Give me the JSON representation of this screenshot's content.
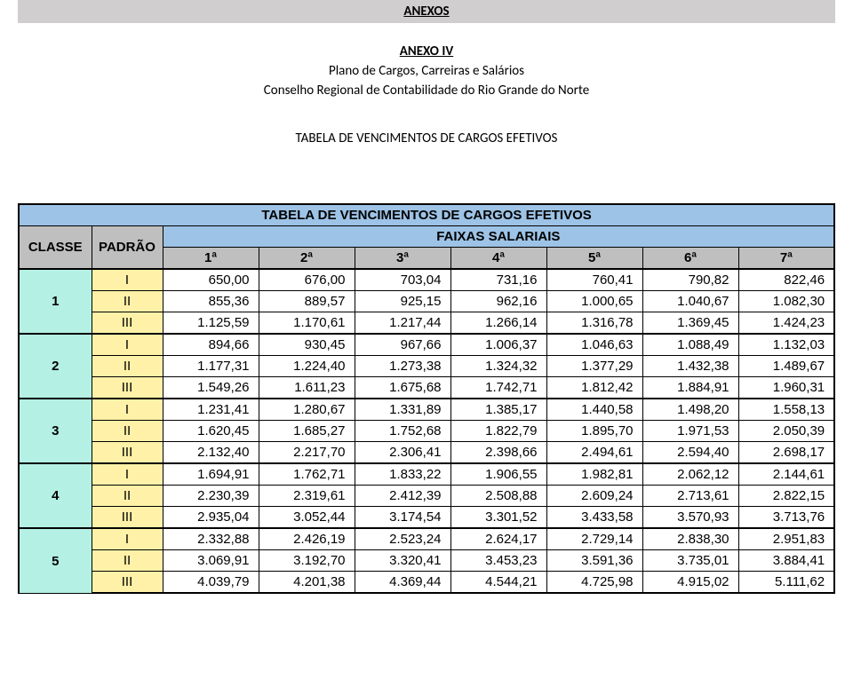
{
  "grayBar": {
    "title": "ANEXOS"
  },
  "header": {
    "annex": "ANEXO IV",
    "line2": "Plano de Cargos, Carreiras e Salários",
    "line3": "Conselho Regional de Contabilidade do Rio Grande do Norte"
  },
  "tableCaption": "TABELA DE VENCIMENTOS DE CARGOS EFETIVOS",
  "table": {
    "title": "TABELA DE VENCIMENTOS DE CARGOS EFETIVOS",
    "faixasTitle": "FAIXAS SALARIAIS",
    "colClasse": "CLASSE",
    "colPadrao": "PADRÃO",
    "faixas": [
      "1ª",
      "2ª",
      "3ª",
      "4ª",
      "5ª",
      "6ª",
      "7ª"
    ],
    "groups": [
      {
        "classe": "1",
        "rows": [
          {
            "padrao": "I",
            "vals": [
              "650,00",
              "676,00",
              "703,04",
              "731,16",
              "760,41",
              "790,82",
              "822,46"
            ]
          },
          {
            "padrao": "II",
            "vals": [
              "855,36",
              "889,57",
              "925,15",
              "962,16",
              "1.000,65",
              "1.040,67",
              "1.082,30"
            ]
          },
          {
            "padrao": "III",
            "vals": [
              "1.125,59",
              "1.170,61",
              "1.217,44",
              "1.266,14",
              "1.316,78",
              "1.369,45",
              "1.424,23"
            ]
          }
        ]
      },
      {
        "classe": "2",
        "rows": [
          {
            "padrao": "I",
            "vals": [
              "894,66",
              "930,45",
              "967,66",
              "1.006,37",
              "1.046,63",
              "1.088,49",
              "1.132,03"
            ]
          },
          {
            "padrao": "II",
            "vals": [
              "1.177,31",
              "1.224,40",
              "1.273,38",
              "1.324,32",
              "1.377,29",
              "1.432,38",
              "1.489,67"
            ]
          },
          {
            "padrao": "III",
            "vals": [
              "1.549,26",
              "1.611,23",
              "1.675,68",
              "1.742,71",
              "1.812,42",
              "1.884,91",
              "1.960,31"
            ]
          }
        ]
      },
      {
        "classe": "3",
        "rows": [
          {
            "padrao": "I",
            "vals": [
              "1.231,41",
              "1.280,67",
              "1.331,89",
              "1.385,17",
              "1.440,58",
              "1.498,20",
              "1.558,13"
            ]
          },
          {
            "padrao": "II",
            "vals": [
              "1.620,45",
              "1.685,27",
              "1.752,68",
              "1.822,79",
              "1.895,70",
              "1.971,53",
              "2.050,39"
            ]
          },
          {
            "padrao": "III",
            "vals": [
              "2.132,40",
              "2.217,70",
              "2.306,41",
              "2.398,66",
              "2.494,61",
              "2.594,40",
              "2.698,17"
            ]
          }
        ]
      },
      {
        "classe": "4",
        "rows": [
          {
            "padrao": "I",
            "vals": [
              "1.694,91",
              "1.762,71",
              "1.833,22",
              "1.906,55",
              "1.982,81",
              "2.062,12",
              "2.144,61"
            ]
          },
          {
            "padrao": "II",
            "vals": [
              "2.230,39",
              "2.319,61",
              "2.412,39",
              "2.508,88",
              "2.609,24",
              "2.713,61",
              "2.822,15"
            ]
          },
          {
            "padrao": "III",
            "vals": [
              "2.935,04",
              "3.052,44",
              "3.174,54",
              "3.301,52",
              "3.433,58",
              "3.570,93",
              "3.713,76"
            ]
          }
        ]
      },
      {
        "classe": "5",
        "rows": [
          {
            "padrao": "I",
            "vals": [
              "2.332,88",
              "2.426,19",
              "2.523,24",
              "2.624,17",
              "2.729,14",
              "2.838,30",
              "2.951,83"
            ]
          },
          {
            "padrao": "II",
            "vals": [
              "3.069,91",
              "3.192,70",
              "3.320,41",
              "3.453,23",
              "3.591,36",
              "3.735,01",
              "3.884,41"
            ]
          },
          {
            "padrao": "III",
            "vals": [
              "4.039,79",
              "4.201,38",
              "4.369,44",
              "4.544,21",
              "4.725,98",
              "4.915,02",
              "5.111,62"
            ]
          }
        ]
      }
    ]
  },
  "style": {
    "hdrBlue": "#9dc3e6",
    "hdrGray": "#bfbfbf",
    "classeBg": "#b4f0e4",
    "padraoBg": "#fff2a8",
    "border": "#000000",
    "background": "#ffffff"
  }
}
